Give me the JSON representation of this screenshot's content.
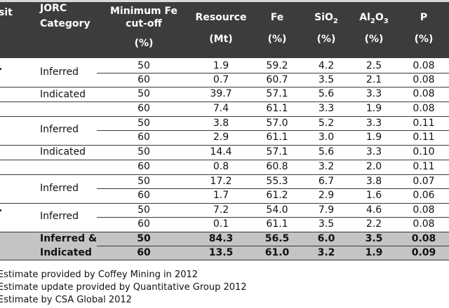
{
  "header": {
    "deposit": "sit",
    "category_l1": "JORC",
    "category_l2": "Category",
    "cutoff_l1": "Minimum Fe",
    "cutoff_l2": "cut-off",
    "cutoff_unit": "(%)",
    "resource": "Resource",
    "resource_unit": "(Mt)",
    "fe": "Fe",
    "fe_unit": "(%)",
    "sio2": "SiO",
    "sio2_sub": "2",
    "sio2_unit": "(%)",
    "al2o3_a": "Al",
    "al2o3_sub1": "2",
    "al2o3_b": "O",
    "al2o3_sub2": "3",
    "al2o3_unit": "(%)",
    "p": "P",
    "p_unit": "(%)"
  },
  "categories": [
    "Inferred",
    "Indicated",
    "Inferred",
    "Indicated",
    "Inferred",
    "Inferred"
  ],
  "total_category_l1": "Inferred &",
  "total_category_l2": "Indicated",
  "rows": [
    {
      "cutoff": "50",
      "resource": "1.9",
      "fe": "59.2",
      "sio2": "4.2",
      "al2o3": "2.5",
      "p": "0.08"
    },
    {
      "cutoff": "60",
      "resource": "0.7",
      "fe": "60.7",
      "sio2": "3.5",
      "al2o3": "2.1",
      "p": "0.08"
    },
    {
      "cutoff": "50",
      "resource": "39.7",
      "fe": "57.1",
      "sio2": "5.6",
      "al2o3": "3.3",
      "p": "0.08"
    },
    {
      "cutoff": "60",
      "resource": "7.4",
      "fe": "61.1",
      "sio2": "3.3",
      "al2o3": "1.9",
      "p": "0.08"
    },
    {
      "cutoff": "50",
      "resource": "3.8",
      "fe": "57.0",
      "sio2": "5.2",
      "al2o3": "3.3",
      "p": "0.11"
    },
    {
      "cutoff": "60",
      "resource": "2.9",
      "fe": "61.1",
      "sio2": "3.0",
      "al2o3": "1.9",
      "p": "0.11"
    },
    {
      "cutoff": "50",
      "resource": "14.4",
      "fe": "57.1",
      "sio2": "5.6",
      "al2o3": "3.3",
      "p": "0.10"
    },
    {
      "cutoff": "60",
      "resource": "0.8",
      "fe": "60.8",
      "sio2": "3.2",
      "al2o3": "2.0",
      "p": "0.11"
    },
    {
      "cutoff": "50",
      "resource": "17.2",
      "fe": "55.3",
      "sio2": "6.7",
      "al2o3": "3.8",
      "p": "0.07"
    },
    {
      "cutoff": "60",
      "resource": "1.7",
      "fe": "61.2",
      "sio2": "2.9",
      "al2o3": "1.6",
      "p": "0.06"
    },
    {
      "cutoff": "50",
      "resource": "7.2",
      "fe": "54.0",
      "sio2": "7.9",
      "al2o3": "4.6",
      "p": "0.08"
    },
    {
      "cutoff": "60",
      "resource": "0.1",
      "fe": "61.1",
      "sio2": "3.5",
      "al2o3": "2.2",
      "p": "0.08"
    }
  ],
  "total_rows": [
    {
      "cutoff": "50",
      "resource": "84.3",
      "fe": "56.5",
      "sio2": "6.0",
      "al2o3": "3.5",
      "p": "0.08"
    },
    {
      "cutoff": "60",
      "resource": "13.5",
      "fe": "61.0",
      "sio2": "3.2",
      "al2o3": "1.9",
      "p": "0.09"
    }
  ],
  "notes": [
    "Estimate provided by Coffey Mining in 2012",
    "Estimate update provided by Quantitative Group 2012",
    "Estimate by CSA Global 2012"
  ]
}
